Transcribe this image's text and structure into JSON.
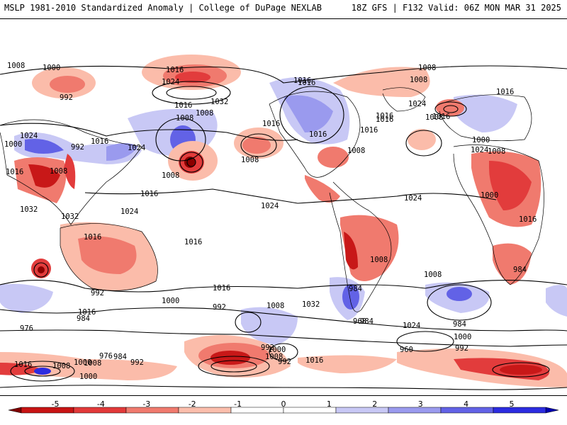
{
  "header": {
    "left_title": "MSLP 1981-2010 Standardized Anomaly | College of DuPage NEXLAB",
    "right_title": "18Z GFS | F132 Valid: 06Z MON MAR 31 2025"
  },
  "map": {
    "projection": "global equirectangular",
    "isobar_labels": [
      "1008",
      "1000",
      "992",
      "1016",
      "1024",
      "1032",
      "1016",
      "1008",
      "1024",
      "1000",
      "1016",
      "992",
      "1024",
      "1008",
      "1016",
      "1008",
      "1016",
      "1032",
      "1024",
      "1016",
      "1032",
      "1016",
      "1024",
      "1008",
      "1016",
      "1008",
      "1016",
      "1008",
      "1016",
      "1008",
      "1016",
      "1016",
      "1024",
      "1016",
      "1016",
      "1008",
      "1016",
      "1008",
      "1000",
      "1016",
      "1008",
      "1024",
      "1000",
      "1016",
      "984",
      "1024",
      "1008",
      "1008",
      "1016",
      "984",
      "992",
      "1000",
      "1016",
      "984",
      "976",
      "992",
      "1008",
      "1032",
      "984",
      "1000",
      "968",
      "1024",
      "984",
      "1000",
      "960",
      "992",
      "1008",
      "992",
      "992",
      "1016",
      "1008",
      "1000",
      "976",
      "984",
      "992",
      "1016",
      "1008",
      "1000"
    ],
    "anomaly_colors": {
      "neg5": "#8b0000",
      "neg4": "#c81818",
      "neg3": "#e23c3c",
      "neg2": "#f07a6e",
      "neg1": "#fbbcaa",
      "pos1": "#c8c8f5",
      "pos2": "#9a9aee",
      "pos3": "#6262e6",
      "pos4": "#2c2ce0",
      "pos5": "#0000b4"
    }
  },
  "colorbar": {
    "tick_labels": [
      "-5",
      "-4",
      "-3",
      "-2",
      "-1",
      "0",
      "1",
      "2",
      "3",
      "4",
      "5"
    ],
    "colors": [
      "#800000",
      "#c81414",
      "#e23a3a",
      "#f07a6e",
      "#fbbeac",
      "#ffffff",
      "#ffffff",
      "#c8c8f5",
      "#9a9aee",
      "#6262e6",
      "#2c2ce0",
      "#0000b0"
    ]
  }
}
